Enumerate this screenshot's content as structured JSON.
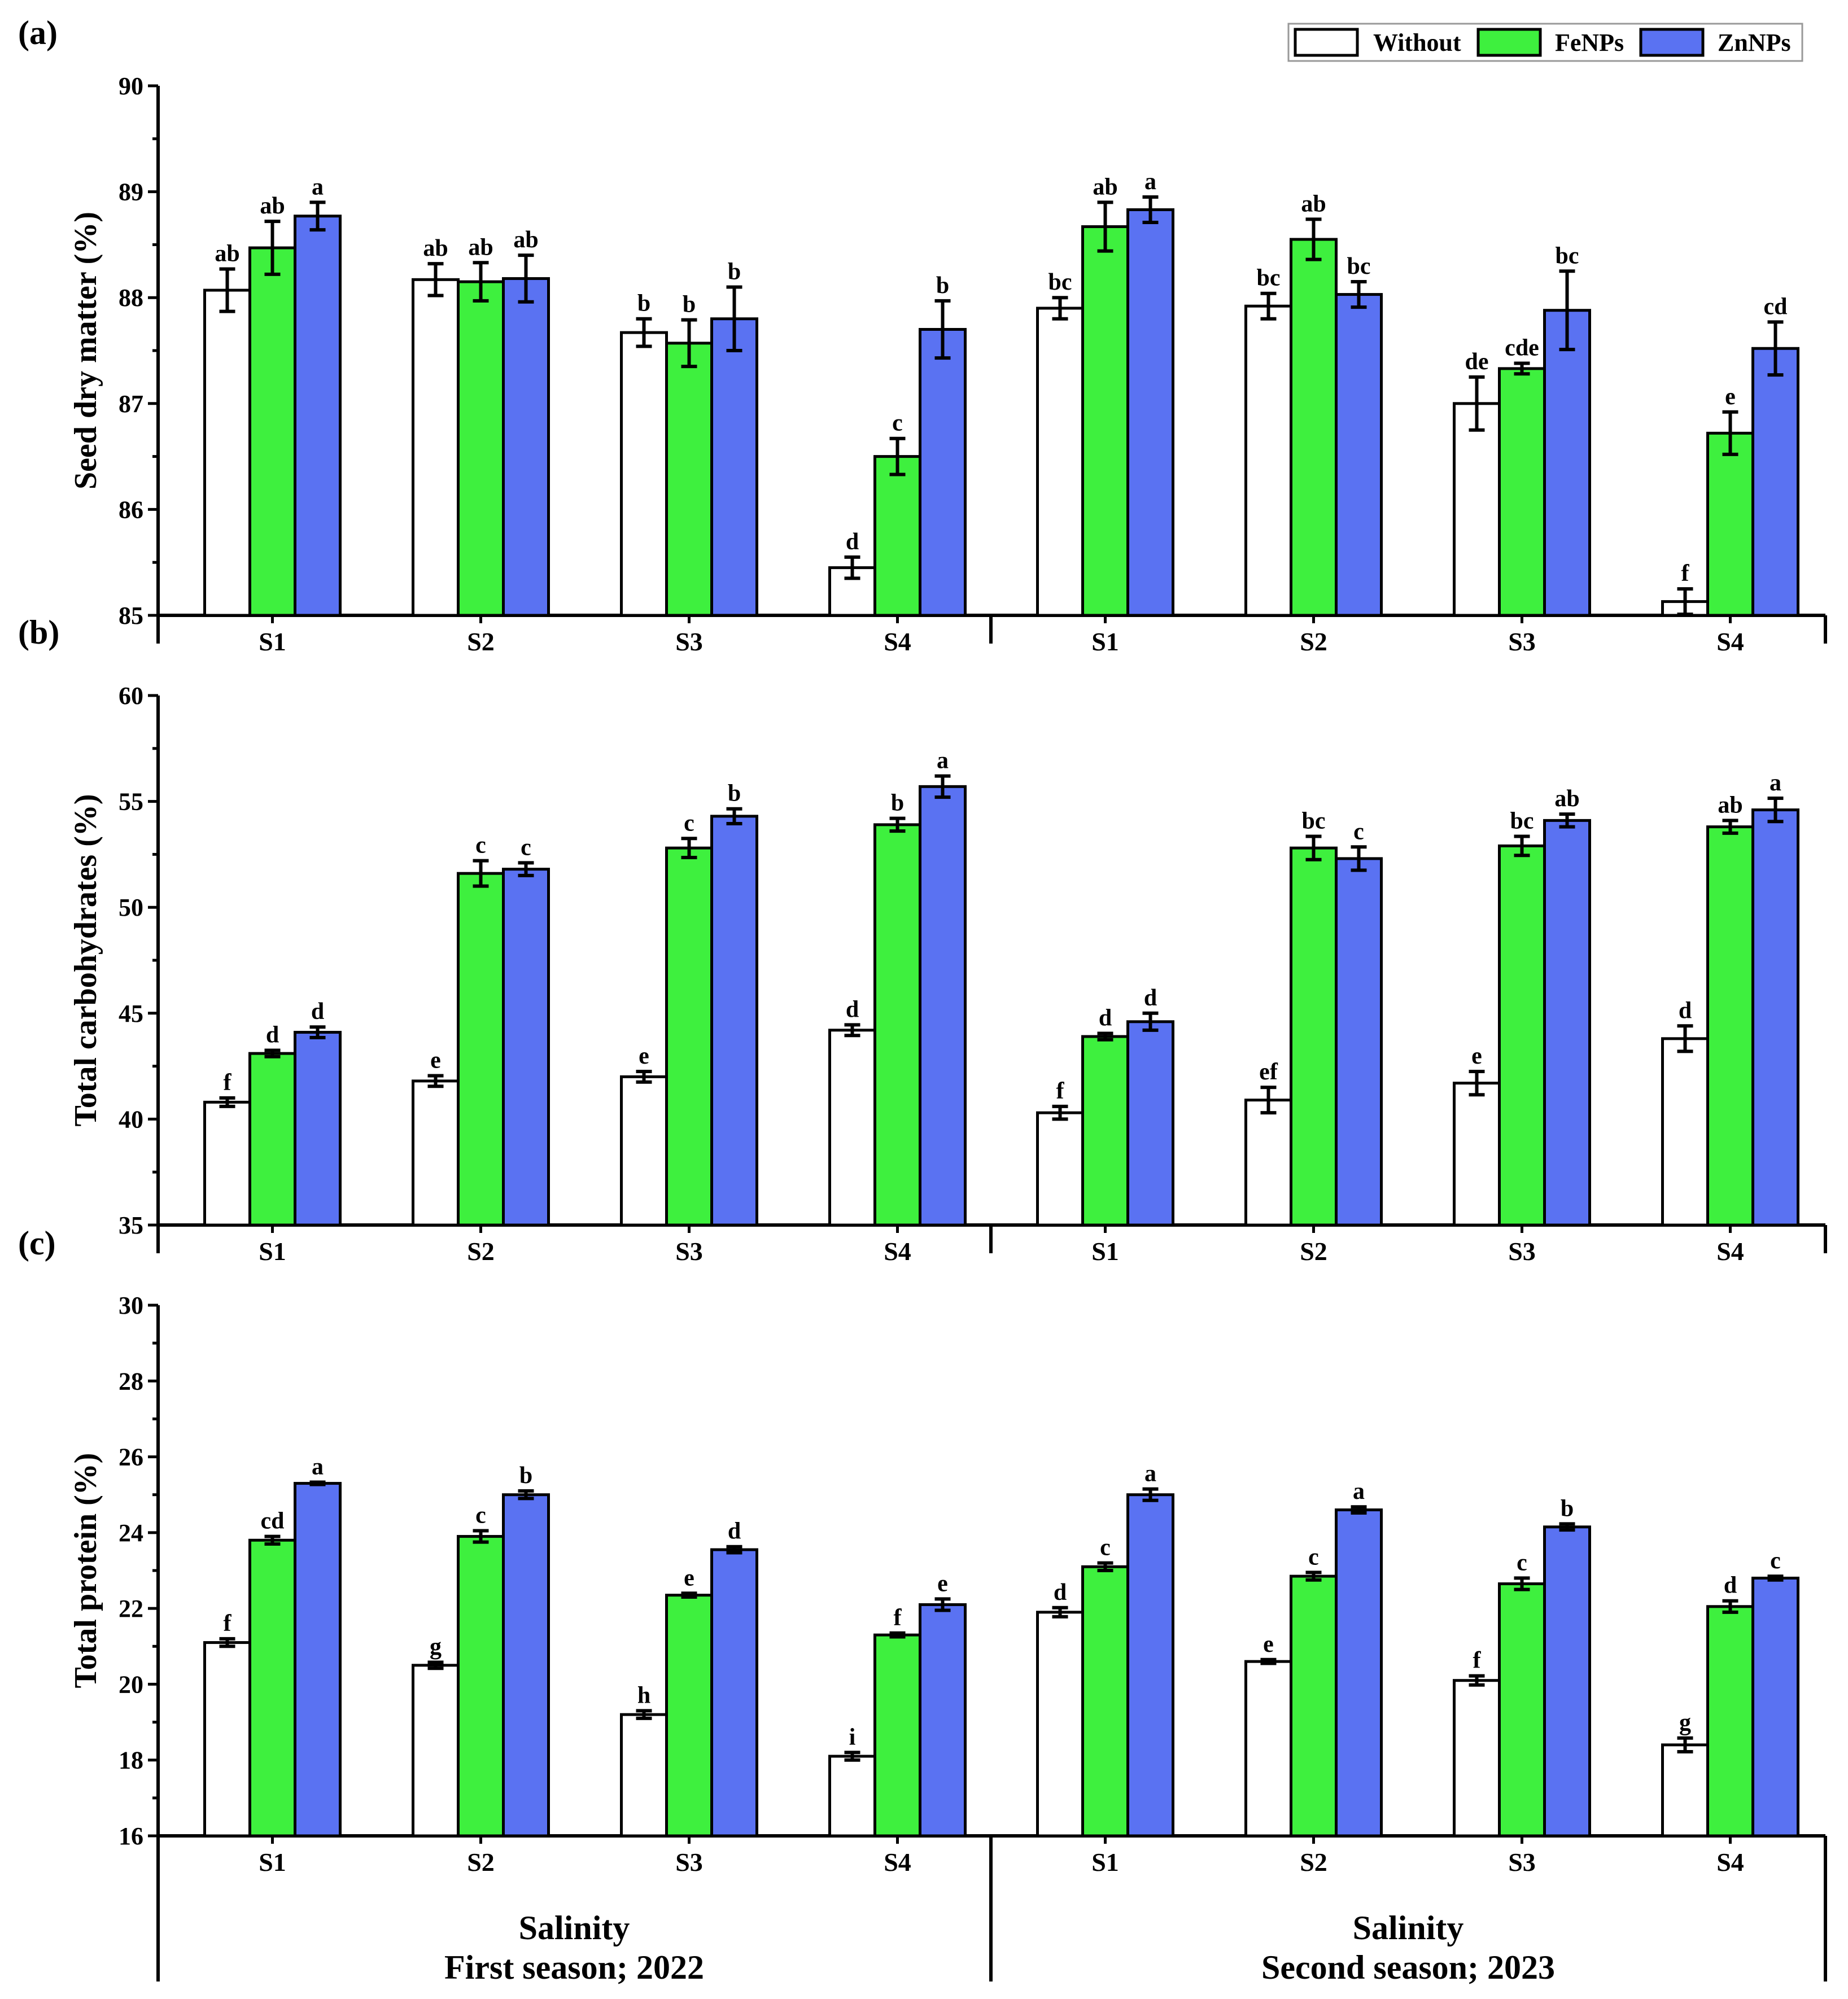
{
  "chart_data": [
    {
      "panel": "(a)",
      "type": "bar",
      "ylabel": "Seed dry matter (%)",
      "ylim": [
        85,
        90
      ],
      "yticks": [
        85,
        86,
        87,
        88,
        89,
        90
      ],
      "groups": [
        {
          "season": "First season; 2022",
          "categories": [
            "S1",
            "S2",
            "S3",
            "S4"
          ],
          "series": [
            {
              "name": "Without",
              "values": [
                88.07,
                88.17,
                87.67,
                85.45
              ],
              "errors": [
                0.2,
                0.15,
                0.13,
                0.1
              ],
              "letters": [
                "ab",
                "ab",
                "b",
                "d"
              ]
            },
            {
              "name": "FeNPs",
              "values": [
                88.47,
                88.15,
                87.57,
                86.5
              ],
              "errors": [
                0.25,
                0.18,
                0.22,
                0.17
              ],
              "letters": [
                "ab",
                "ab",
                "b",
                "c"
              ]
            },
            {
              "name": "ZnNPs",
              "values": [
                88.77,
                88.18,
                87.8,
                87.7
              ],
              "errors": [
                0.13,
                0.22,
                0.3,
                0.27
              ],
              "letters": [
                "a",
                "ab",
                "b",
                "b"
              ]
            }
          ]
        },
        {
          "season": "Second season; 2023",
          "categories": [
            "S1",
            "S2",
            "S3",
            "S4"
          ],
          "series": [
            {
              "name": "Without",
              "values": [
                87.9,
                87.92,
                87.0,
                85.13
              ],
              "errors": [
                0.1,
                0.12,
                0.25,
                0.12
              ],
              "letters": [
                "bc",
                "bc",
                "de",
                "f"
              ]
            },
            {
              "name": "FeNPs",
              "values": [
                88.67,
                88.55,
                87.33,
                86.72
              ],
              "errors": [
                0.23,
                0.19,
                0.05,
                0.2
              ],
              "letters": [
                "ab",
                "ab",
                "cde",
                "e"
              ]
            },
            {
              "name": "ZnNPs",
              "values": [
                88.83,
                88.03,
                87.88,
                87.52
              ],
              "errors": [
                0.12,
                0.12,
                0.37,
                0.25
              ],
              "letters": [
                "a",
                "bc",
                "bc",
                "cd"
              ]
            }
          ]
        }
      ]
    },
    {
      "panel": "(b)",
      "type": "bar",
      "ylabel": "Total carbohydrates (%)",
      "ylim": [
        35,
        60
      ],
      "yticks": [
        35,
        40,
        45,
        50,
        55,
        60
      ],
      "groups": [
        {
          "season": "First season; 2022",
          "categories": [
            "S1",
            "S2",
            "S3",
            "S4"
          ],
          "series": [
            {
              "name": "Without",
              "values": [
                40.8,
                41.8,
                42.0,
                44.2
              ],
              "errors": [
                0.2,
                0.25,
                0.25,
                0.25
              ],
              "letters": [
                "f",
                "e",
                "e",
                "d"
              ]
            },
            {
              "name": "FeNPs",
              "values": [
                43.1,
                51.6,
                52.8,
                53.9
              ],
              "errors": [
                0.15,
                0.6,
                0.45,
                0.3
              ],
              "letters": [
                "d",
                "c",
                "c",
                "b"
              ]
            },
            {
              "name": "ZnNPs",
              "values": [
                44.1,
                51.8,
                54.3,
                55.7
              ],
              "errors": [
                0.25,
                0.3,
                0.35,
                0.5
              ],
              "letters": [
                "d",
                "c",
                "b",
                "a"
              ]
            }
          ]
        },
        {
          "season": "Second season; 2023",
          "categories": [
            "S1",
            "S2",
            "S3",
            "S4"
          ],
          "series": [
            {
              "name": "Without",
              "values": [
                40.3,
                40.9,
                41.7,
                43.8
              ],
              "errors": [
                0.3,
                0.6,
                0.55,
                0.6
              ],
              "letters": [
                "f",
                "ef",
                "e",
                "d"
              ]
            },
            {
              "name": "FeNPs",
              "values": [
                43.9,
                52.8,
                52.9,
                53.8
              ],
              "errors": [
                0.15,
                0.55,
                0.45,
                0.3
              ],
              "letters": [
                "d",
                "bc",
                "bc",
                "ab"
              ]
            },
            {
              "name": "ZnNPs",
              "values": [
                44.6,
                52.3,
                54.1,
                54.6
              ],
              "errors": [
                0.4,
                0.55,
                0.3,
                0.55
              ],
              "letters": [
                "d",
                "c",
                "ab",
                "a"
              ]
            }
          ]
        }
      ]
    },
    {
      "panel": "(c)",
      "type": "bar",
      "ylabel": "Total protein (%)",
      "ylim": [
        16,
        30
      ],
      "yticks": [
        16,
        18,
        20,
        22,
        24,
        26,
        28,
        30
      ],
      "groups": [
        {
          "season": "First season; 2022",
          "categories": [
            "S1",
            "S2",
            "S3",
            "S4"
          ],
          "series": [
            {
              "name": "Without",
              "values": [
                21.1,
                20.5,
                19.2,
                18.1
              ],
              "errors": [
                0.1,
                0.08,
                0.1,
                0.1
              ],
              "letters": [
                "f",
                "g",
                "h",
                "i"
              ]
            },
            {
              "name": "FeNPs",
              "values": [
                23.8,
                23.9,
                22.35,
                21.3
              ],
              "errors": [
                0.1,
                0.15,
                0.05,
                0.05
              ],
              "letters": [
                "cd",
                "c",
                "e",
                "f"
              ]
            },
            {
              "name": "ZnNPs",
              "values": [
                25.3,
                25.0,
                23.55,
                22.1
              ],
              "errors": [
                0.03,
                0.1,
                0.08,
                0.15
              ],
              "letters": [
                "a",
                "b",
                "d",
                "e"
              ]
            }
          ]
        },
        {
          "season": "Second season; 2023",
          "categories": [
            "S1",
            "S2",
            "S3",
            "S4"
          ],
          "series": [
            {
              "name": "Without",
              "values": [
                21.9,
                20.6,
                20.1,
                18.4
              ],
              "errors": [
                0.12,
                0.05,
                0.12,
                0.18
              ],
              "letters": [
                "d",
                "e",
                "f",
                "g"
              ]
            },
            {
              "name": "FeNPs",
              "values": [
                23.1,
                22.85,
                22.65,
                22.05
              ],
              "errors": [
                0.1,
                0.1,
                0.15,
                0.15
              ],
              "letters": [
                "c",
                "c",
                "c",
                "d"
              ]
            },
            {
              "name": "ZnNPs",
              "values": [
                25.0,
                24.6,
                24.15,
                22.8
              ],
              "errors": [
                0.15,
                0.08,
                0.08,
                0.05
              ],
              "letters": [
                "a",
                "a",
                "b",
                "c"
              ]
            }
          ]
        }
      ]
    }
  ],
  "legend": [
    {
      "name": "Without",
      "color": "#ffffff"
    },
    {
      "name": "FeNPs",
      "color": "#3ef03e"
    },
    {
      "name": "ZnNPs",
      "color": "#5a72f2"
    }
  ],
  "footer": {
    "left_line1": "Salinity",
    "left_line2": "First season; 2022",
    "right_line1": "Salinity",
    "right_line2": "Second season; 2023"
  }
}
